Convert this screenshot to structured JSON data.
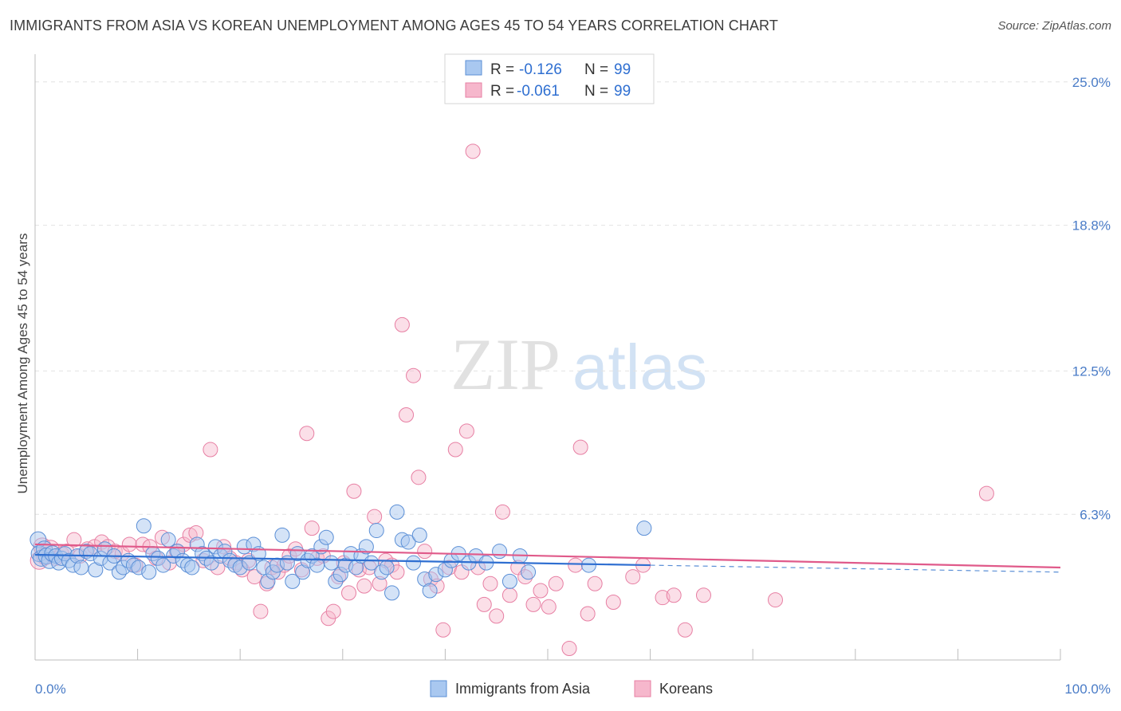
{
  "title": "IMMIGRANTS FROM ASIA VS KOREAN UNEMPLOYMENT AMONG AGES 45 TO 54 YEARS CORRELATION CHART",
  "source": "Source: ZipAtlas.com",
  "colors": {
    "asia_fill": "#a9c8f0",
    "asia_stroke": "#5b8fd6",
    "asia_line": "#2f6fd1",
    "korean_fill": "#f6b7cc",
    "korean_stroke": "#e77fa3",
    "korean_line": "#e05a8a",
    "accent_text": "#2f6fd1"
  },
  "legend_box": {
    "rows": [
      {
        "r_label": "R =",
        "r_value": "-0.126",
        "n_label": "N =",
        "n_value": "99"
      },
      {
        "r_label": "R =",
        "r_value": "-0.061",
        "n_label": "N =",
        "n_value": "99"
      }
    ]
  },
  "chart_data": {
    "type": "scatter",
    "title": "IMMIGRANTS FROM ASIA VS KOREAN UNEMPLOYMENT AMONG AGES 45 TO 54 YEARS CORRELATION CHART",
    "xlabel": "",
    "ylabel": "Unemployment Among Ages 45 to 54 years",
    "xlim": [
      0,
      100
    ],
    "ylim": [
      0,
      26.2
    ],
    "x_tick_labels": [
      {
        "value": 0,
        "label": "0.0%"
      },
      {
        "value": 100,
        "label": "100.0%"
      }
    ],
    "y_tick_labels": [
      {
        "value": 6.3,
        "label": "6.3%"
      },
      {
        "value": 12.5,
        "label": "12.5%"
      },
      {
        "value": 18.8,
        "label": "18.8%"
      },
      {
        "value": 25.0,
        "label": "25.0%"
      }
    ],
    "watermark": {
      "part1": "ZIP",
      "part2": "atlas"
    },
    "series": [
      {
        "name": "Immigrants from Asia",
        "r": -0.126,
        "n": 99,
        "trend": {
          "x0": 0,
          "y0": 4.55,
          "x1": 60,
          "y1": 4.1,
          "dash_to_x": 100,
          "dash_y": 3.8
        },
        "points": [
          [
            0.3,
            5.2
          ],
          [
            0.4,
            4.6
          ],
          [
            0.6,
            4.4
          ],
          [
            0.9,
            4.8
          ],
          [
            1.1,
            4.5
          ],
          [
            1.4,
            4.3
          ],
          [
            1.7,
            4.6
          ],
          [
            2.0,
            4.5
          ],
          [
            2.3,
            4.2
          ],
          [
            2.6,
            4.4
          ],
          [
            2.9,
            4.6
          ],
          [
            3.3,
            4.3
          ],
          [
            3.7,
            4.1
          ],
          [
            4.1,
            4.5
          ],
          [
            4.5,
            4.0
          ],
          [
            5.0,
            4.7
          ],
          [
            5.4,
            4.6
          ],
          [
            5.9,
            3.9
          ],
          [
            6.4,
            4.4
          ],
          [
            6.8,
            4.8
          ],
          [
            7.3,
            4.2
          ],
          [
            7.7,
            4.5
          ],
          [
            8.2,
            3.8
          ],
          [
            8.6,
            4.0
          ],
          [
            9.1,
            4.3
          ],
          [
            9.6,
            4.1
          ],
          [
            10.1,
            4.0
          ],
          [
            10.6,
            5.8
          ],
          [
            11.1,
            3.8
          ],
          [
            11.5,
            4.6
          ],
          [
            12.0,
            4.4
          ],
          [
            12.5,
            4.1
          ],
          [
            13.0,
            5.2
          ],
          [
            13.5,
            4.5
          ],
          [
            13.9,
            4.7
          ],
          [
            14.4,
            4.3
          ],
          [
            14.9,
            4.1
          ],
          [
            15.3,
            4.0
          ],
          [
            15.8,
            5.0
          ],
          [
            16.3,
            4.6
          ],
          [
            16.7,
            4.4
          ],
          [
            17.2,
            4.2
          ],
          [
            17.6,
            4.9
          ],
          [
            18.1,
            4.5
          ],
          [
            18.5,
            4.7
          ],
          [
            19.0,
            4.3
          ],
          [
            19.5,
            4.1
          ],
          [
            20.0,
            4.0
          ],
          [
            20.4,
            4.9
          ],
          [
            20.9,
            4.2
          ],
          [
            21.3,
            5.0
          ],
          [
            21.8,
            4.6
          ],
          [
            22.3,
            4.0
          ],
          [
            22.7,
            3.4
          ],
          [
            23.2,
            3.8
          ],
          [
            23.6,
            4.1
          ],
          [
            24.1,
            5.4
          ],
          [
            24.6,
            4.2
          ],
          [
            25.1,
            3.4
          ],
          [
            25.6,
            4.6
          ],
          [
            26.1,
            3.8
          ],
          [
            26.6,
            4.3
          ],
          [
            27.0,
            4.5
          ],
          [
            27.5,
            4.1
          ],
          [
            27.9,
            4.9
          ],
          [
            28.4,
            5.3
          ],
          [
            28.9,
            4.2
          ],
          [
            29.3,
            3.4
          ],
          [
            29.8,
            3.7
          ],
          [
            30.3,
            4.1
          ],
          [
            30.8,
            4.6
          ],
          [
            31.3,
            4.0
          ],
          [
            31.8,
            4.5
          ],
          [
            32.3,
            4.9
          ],
          [
            32.8,
            4.2
          ],
          [
            33.3,
            5.6
          ],
          [
            33.8,
            3.8
          ],
          [
            34.3,
            4.0
          ],
          [
            34.8,
            2.9
          ],
          [
            35.3,
            6.4
          ],
          [
            35.8,
            5.2
          ],
          [
            36.4,
            5.1
          ],
          [
            36.9,
            4.2
          ],
          [
            37.5,
            5.4
          ],
          [
            38.0,
            3.5
          ],
          [
            38.5,
            3.0
          ],
          [
            39.1,
            3.7
          ],
          [
            40.0,
            3.9
          ],
          [
            40.6,
            4.3
          ],
          [
            41.3,
            4.6
          ],
          [
            42.3,
            4.2
          ],
          [
            43.0,
            4.5
          ],
          [
            44.0,
            4.2
          ],
          [
            45.3,
            4.7
          ],
          [
            46.3,
            3.4
          ],
          [
            47.3,
            4.5
          ],
          [
            48.1,
            3.8
          ],
          [
            54.0,
            4.1
          ],
          [
            59.4,
            5.7
          ]
        ]
      },
      {
        "name": "Koreans",
        "r": -0.061,
        "n": 99,
        "trend": {
          "x0": 0,
          "y0": 5.0,
          "x1": 100,
          "y1": 4.0
        },
        "points": [
          [
            0.4,
            4.3
          ],
          [
            0.7,
            4.9
          ],
          [
            1.0,
            4.5
          ],
          [
            1.5,
            4.8
          ],
          [
            2.0,
            4.4
          ],
          [
            2.6,
            4.6
          ],
          [
            3.1,
            4.7
          ],
          [
            3.8,
            5.2
          ],
          [
            4.4,
            4.5
          ],
          [
            5.1,
            4.8
          ],
          [
            5.8,
            4.9
          ],
          [
            6.5,
            5.1
          ],
          [
            7.1,
            4.9
          ],
          [
            7.8,
            4.7
          ],
          [
            8.5,
            4.6
          ],
          [
            9.2,
            5.0
          ],
          [
            9.8,
            4.1
          ],
          [
            10.5,
            5.0
          ],
          [
            11.2,
            4.9
          ],
          [
            11.8,
            4.4
          ],
          [
            12.4,
            5.3
          ],
          [
            13.1,
            4.2
          ],
          [
            13.8,
            4.7
          ],
          [
            14.5,
            5.0
          ],
          [
            15.1,
            5.4
          ],
          [
            15.7,
            5.5
          ],
          [
            16.4,
            4.3
          ],
          [
            17.1,
            9.1
          ],
          [
            17.8,
            4.0
          ],
          [
            18.4,
            4.9
          ],
          [
            19.0,
            4.4
          ],
          [
            19.6,
            4.2
          ],
          [
            20.2,
            3.9
          ],
          [
            20.8,
            4.3
          ],
          [
            21.4,
            3.6
          ],
          [
            22.0,
            2.1
          ],
          [
            22.6,
            3.3
          ],
          [
            23.1,
            4.0
          ],
          [
            23.7,
            3.8
          ],
          [
            24.3,
            4.1
          ],
          [
            24.8,
            4.5
          ],
          [
            25.4,
            4.8
          ],
          [
            26.0,
            3.9
          ],
          [
            26.5,
            9.8
          ],
          [
            27.0,
            5.7
          ],
          [
            27.5,
            4.4
          ],
          [
            28.1,
            4.5
          ],
          [
            28.6,
            1.8
          ],
          [
            29.1,
            2.1
          ],
          [
            29.6,
            3.6
          ],
          [
            30.1,
            4.2
          ],
          [
            30.6,
            2.9
          ],
          [
            31.1,
            7.3
          ],
          [
            31.6,
            3.9
          ],
          [
            32.1,
            3.2
          ],
          [
            32.6,
            4.0
          ],
          [
            33.1,
            6.2
          ],
          [
            33.6,
            3.3
          ],
          [
            34.2,
            4.3
          ],
          [
            34.8,
            4.1
          ],
          [
            35.3,
            3.8
          ],
          [
            35.8,
            14.5
          ],
          [
            36.2,
            10.6
          ],
          [
            36.9,
            12.3
          ],
          [
            37.4,
            7.9
          ],
          [
            38.0,
            4.7
          ],
          [
            38.6,
            3.5
          ],
          [
            39.2,
            3.2
          ],
          [
            39.8,
            1.3
          ],
          [
            40.4,
            4.0
          ],
          [
            41.0,
            9.1
          ],
          [
            41.6,
            3.8
          ],
          [
            42.1,
            9.9
          ],
          [
            42.7,
            22.0
          ],
          [
            43.2,
            4.0
          ],
          [
            43.8,
            2.4
          ],
          [
            44.4,
            3.3
          ],
          [
            45.0,
            1.9
          ],
          [
            45.6,
            6.4
          ],
          [
            46.3,
            2.8
          ],
          [
            47.1,
            4.0
          ],
          [
            47.8,
            3.6
          ],
          [
            48.6,
            2.4
          ],
          [
            49.3,
            3.0
          ],
          [
            50.1,
            2.3
          ],
          [
            50.8,
            3.3
          ],
          [
            52.1,
            0.5
          ],
          [
            52.7,
            4.1
          ],
          [
            53.2,
            9.2
          ],
          [
            53.9,
            2.0
          ],
          [
            54.6,
            3.3
          ],
          [
            56.4,
            2.5
          ],
          [
            58.3,
            3.6
          ],
          [
            59.3,
            4.1
          ],
          [
            61.2,
            2.7
          ],
          [
            62.3,
            2.8
          ],
          [
            63.4,
            1.3
          ],
          [
            65.2,
            2.8
          ],
          [
            72.2,
            2.6
          ],
          [
            92.8,
            7.2
          ]
        ]
      }
    ]
  },
  "bottom_legend": [
    {
      "label": "Immigrants from Asia"
    },
    {
      "label": "Koreans"
    }
  ]
}
